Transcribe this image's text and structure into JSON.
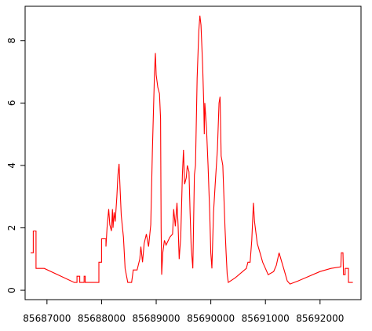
{
  "chart_data": {
    "type": "line",
    "title": "",
    "xlabel": "",
    "ylabel": "",
    "xlim": [
      85686600,
      85692750
    ],
    "ylim": [
      -0.3,
      9.1
    ],
    "xticks": [
      85687000,
      85688000,
      85689000,
      85690000,
      85691000,
      85692000
    ],
    "yticks": [
      0,
      2,
      4,
      6,
      8
    ],
    "grid": false,
    "series": [
      {
        "color": "#ff0000",
        "points": [
          [
            85686700,
            1.2
          ],
          [
            85686750,
            1.2
          ],
          [
            85686750,
            1.9
          ],
          [
            85686800,
            1.9
          ],
          [
            85686800,
            0.7
          ],
          [
            85686950,
            0.7
          ],
          [
            85687500,
            0.25
          ],
          [
            85687550,
            0.25
          ],
          [
            85687550,
            0.45
          ],
          [
            85687600,
            0.45
          ],
          [
            85687600,
            0.25
          ],
          [
            85687680,
            0.25
          ],
          [
            85687680,
            0.45
          ],
          [
            85687700,
            0.45
          ],
          [
            85687700,
            0.25
          ],
          [
            85687950,
            0.25
          ],
          [
            85687950,
            0.9
          ],
          [
            85688000,
            0.9
          ],
          [
            85688000,
            1.65
          ],
          [
            85688080,
            1.65
          ],
          [
            85688080,
            1.4
          ],
          [
            85688100,
            2.0
          ],
          [
            85688130,
            2.6
          ],
          [
            85688150,
            2.1
          ],
          [
            85688180,
            1.9
          ],
          [
            85688200,
            2.6
          ],
          [
            85688210,
            2.0
          ],
          [
            85688230,
            2.5
          ],
          [
            85688250,
            2.2
          ],
          [
            85688280,
            3.0
          ],
          [
            85688300,
            3.7
          ],
          [
            85688320,
            4.05
          ],
          [
            85688340,
            3.2
          ],
          [
            85688360,
            2.4
          ],
          [
            85688400,
            1.7
          ],
          [
            85688430,
            0.7
          ],
          [
            85688480,
            0.25
          ],
          [
            85688550,
            0.25
          ],
          [
            85688580,
            0.65
          ],
          [
            85688650,
            0.65
          ],
          [
            85688700,
            1.0
          ],
          [
            85688720,
            1.4
          ],
          [
            85688750,
            0.9
          ],
          [
            85688780,
            1.5
          ],
          [
            85688820,
            1.8
          ],
          [
            85688860,
            1.4
          ],
          [
            85688900,
            2.1
          ],
          [
            85688930,
            4.5
          ],
          [
            85688970,
            7.0
          ],
          [
            85688985,
            7.6
          ],
          [
            85689000,
            6.9
          ],
          [
            85689030,
            6.5
          ],
          [
            85689060,
            6.3
          ],
          [
            85689080,
            5.5
          ],
          [
            85689090,
            2.0
          ],
          [
            85689100,
            0.5
          ],
          [
            85689120,
            1.2
          ],
          [
            85689150,
            1.6
          ],
          [
            85689180,
            1.45
          ],
          [
            85689250,
            1.7
          ],
          [
            85689300,
            1.8
          ],
          [
            85689320,
            2.6
          ],
          [
            85689350,
            2.05
          ],
          [
            85689380,
            2.8
          ],
          [
            85689400,
            2.1
          ],
          [
            85689420,
            1.0
          ],
          [
            85689450,
            1.7
          ],
          [
            85689480,
            3.7
          ],
          [
            85689500,
            4.5
          ],
          [
            85689520,
            3.4
          ],
          [
            85689550,
            3.6
          ],
          [
            85689570,
            4.0
          ],
          [
            85689600,
            3.8
          ],
          [
            85689620,
            2.5
          ],
          [
            85689640,
            1.4
          ],
          [
            85689670,
            0.7
          ],
          [
            85689700,
            3.7
          ],
          [
            85689720,
            4.0
          ],
          [
            85689750,
            6.8
          ],
          [
            85689780,
            8.3
          ],
          [
            85689800,
            8.8
          ],
          [
            85689820,
            8.5
          ],
          [
            85689850,
            7.2
          ],
          [
            85689870,
            6.0
          ],
          [
            85689880,
            5.0
          ],
          [
            85689890,
            6.0
          ],
          [
            85689920,
            5.2
          ],
          [
            85689950,
            4.0
          ],
          [
            85689980,
            2.5
          ],
          [
            85690000,
            1.2
          ],
          [
            85690020,
            0.7
          ],
          [
            85690050,
            2.5
          ],
          [
            85690080,
            3.4
          ],
          [
            85690120,
            4.5
          ],
          [
            85690150,
            6.0
          ],
          [
            85690170,
            6.2
          ],
          [
            85690190,
            4.3
          ],
          [
            85690220,
            4.0
          ],
          [
            85690240,
            3.0
          ],
          [
            85690260,
            2.0
          ],
          [
            85690280,
            1.2
          ],
          [
            85690300,
            0.5
          ],
          [
            85690320,
            0.25
          ],
          [
            85690450,
            0.4
          ],
          [
            85690650,
            0.7
          ],
          [
            85690680,
            0.9
          ],
          [
            85690720,
            0.9
          ],
          [
            85690750,
            1.6
          ],
          [
            85690780,
            2.8
          ],
          [
            85690800,
            2.2
          ],
          [
            85690850,
            1.5
          ],
          [
            85690900,
            1.2
          ],
          [
            85690950,
            0.9
          ],
          [
            85691000,
            0.7
          ],
          [
            85691050,
            0.5
          ],
          [
            85691150,
            0.6
          ],
          [
            85691200,
            0.8
          ],
          [
            85691250,
            1.2
          ],
          [
            85691300,
            0.9
          ],
          [
            85691350,
            0.6
          ],
          [
            85691400,
            0.3
          ],
          [
            85691450,
            0.2
          ],
          [
            85691600,
            0.3
          ],
          [
            85692000,
            0.6
          ],
          [
            85692200,
            0.7
          ],
          [
            85692380,
            0.75
          ],
          [
            85692390,
            1.2
          ],
          [
            85692420,
            1.2
          ],
          [
            85692430,
            0.5
          ],
          [
            85692460,
            0.5
          ],
          [
            85692460,
            0.7
          ],
          [
            85692520,
            0.7
          ],
          [
            85692520,
            0.25
          ],
          [
            85692600,
            0.25
          ]
        ]
      }
    ]
  }
}
